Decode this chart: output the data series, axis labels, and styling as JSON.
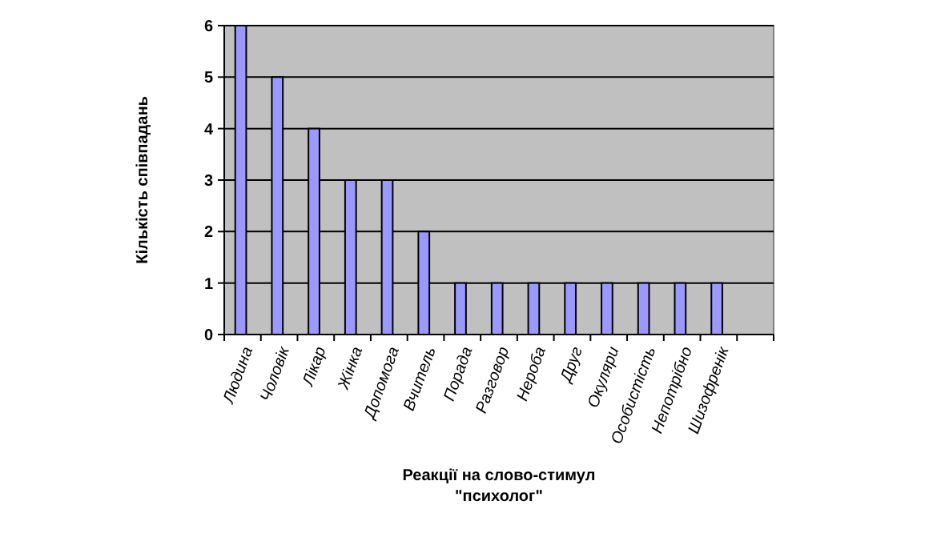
{
  "chart_data": {
    "type": "bar",
    "xlabel": "Реакції на слово-стимул\n\"психолог\"",
    "ylabel": "Кількість співпадань",
    "categories": [
      "Людина",
      "Чоловік",
      "Лікар",
      "Жінка",
      "Допомога",
      "Вчитель",
      "Порада",
      "Разговор",
      "Нероба",
      "Друг",
      "Окуляри",
      "Особистість",
      "Непотрібно",
      "Шизофренік",
      null
    ],
    "values": [
      6,
      5,
      4,
      3,
      3,
      2,
      1,
      1,
      1,
      1,
      1,
      1,
      1,
      1,
      null
    ],
    "color": "#9999ff",
    "ylim": [
      0,
      6
    ],
    "yticks": [
      0,
      1,
      2,
      3,
      4,
      5,
      6
    ],
    "grid": "y"
  }
}
